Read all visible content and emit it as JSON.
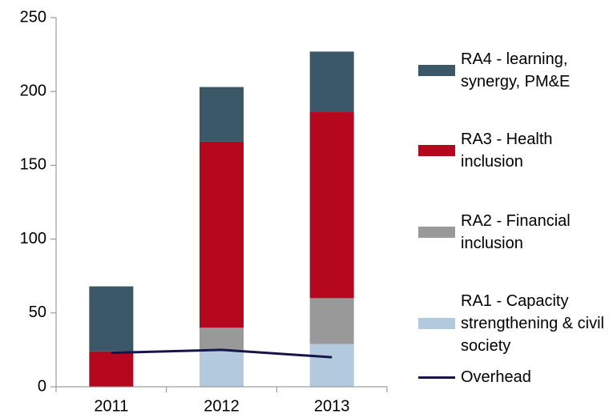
{
  "chart_data": {
    "type": "stacked_bar_line",
    "categories": [
      "2011",
      "2012",
      "2013"
    ],
    "series": [
      {
        "name": "RA1 - Capacity strengthening & civil society",
        "color": "#b3cade",
        "values": [
          0,
          25,
          29
        ]
      },
      {
        "name": "RA2 - Financial inclusion",
        "color": "#999999",
        "values": [
          0,
          15,
          31
        ]
      },
      {
        "name": "RA3 - Health inclusion",
        "color": "#b5081f",
        "values": [
          24,
          126,
          126
        ]
      },
      {
        "name": "RA4 - learning, synergy, PM&E",
        "color": "#3b5868",
        "values": [
          44,
          37,
          41
        ]
      },
      {
        "name": "Overhead",
        "color": "#16154a",
        "values": [
          23,
          25,
          20
        ],
        "kind": "line"
      }
    ],
    "ylim": [
      0,
      250
    ],
    "yticks": [
      0,
      50,
      100,
      150,
      200,
      250
    ],
    "legend": "right"
  }
}
